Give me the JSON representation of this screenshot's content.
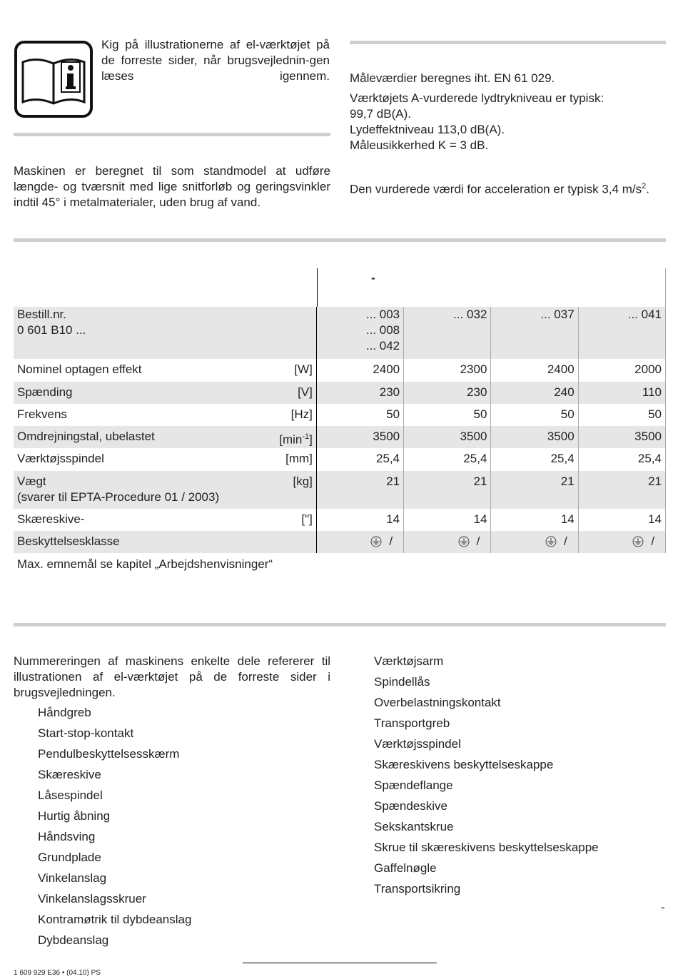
{
  "intro": {
    "text": "Kig på illustrationerne af el-værktøjet på de forreste sider, når brugsvejlednin-gen læses igennem.",
    "icon": "book-info-icon"
  },
  "intended_use": "Maskinen er beregnet til som standmodel at udføre længde- og tværsnit med lige snitforløb og geringsvinkler indtil 45° i metalmaterialer, uden brug af vand.",
  "noise": {
    "line1": "Måleværdier beregnes iht. EN 61 029.",
    "line2": "Værktøjets A-vurderede lydtrykniveau er typisk:",
    "line3": "99,7 dB(A).",
    "line4": "Lydeffektniveau 113,0 dB(A).",
    "line5": "Måleusikkerhed K = 3 dB."
  },
  "vibration": {
    "text": "Den vurderede værdi for acceleration er typisk 3,4 m/s",
    "sup": "2",
    "end": "."
  },
  "table": {
    "header_dash": "-",
    "order_label": "Bestill.nr.",
    "order_prefix": "0 601 B10 ...",
    "order_numbers": [
      [
        "... 003",
        "... 008",
        "... 042"
      ],
      [
        "... 032"
      ],
      [
        "... 037"
      ],
      [
        "... 041"
      ]
    ],
    "rows": [
      {
        "label": "Nominel optagen effekt",
        "unit": "[W]",
        "values": [
          "2400",
          "2300",
          "2400",
          "2000"
        ]
      },
      {
        "label": "Spænding",
        "unit": "[V]",
        "values": [
          "230",
          "230",
          "240",
          "110"
        ]
      },
      {
        "label": "Frekvens",
        "unit": "[Hz]",
        "values": [
          "50",
          "50",
          "50",
          "50"
        ]
      },
      {
        "label": "Omdrejningstal, ubelastet",
        "unit": "[min",
        "unit_sup": "-1",
        "unit_end": "]",
        "values": [
          "3500",
          "3500",
          "3500",
          "3500"
        ]
      },
      {
        "label": "Værktøjsspindel",
        "unit": "[mm]",
        "values": [
          "25,4",
          "25,4",
          "25,4",
          "25,4"
        ]
      },
      {
        "label": "Vægt",
        "label2": "(svarer til EPTA-Procedure 01 / 2003)",
        "unit": "[kg]",
        "values": [
          "21",
          "21",
          "21",
          "21"
        ]
      },
      {
        "label": "Skæreskive-",
        "unit": "[\"]",
        "values": [
          "14",
          "14",
          "14",
          "14"
        ]
      },
      {
        "label": "Beskyttelsesklasse",
        "unit": "",
        "values": [
          "/",
          "/",
          "/",
          "/"
        ]
      }
    ],
    "protection_icon": "earth-ground-icon",
    "note": "Max. emnemål se kapitel „Arbejdshenvisninger“"
  },
  "parts": {
    "intro": "Nummereringen af maskinens enkelte dele refererer til illustrationen af el-værktøjet på de forreste sider i brugsvejledningen.",
    "left": [
      "Håndgreb",
      "Start-stop-kontakt",
      "Pendulbeskyttelsesskærm",
      "Skæreskive",
      "Låsespindel",
      "Hurtig åbning",
      "Håndsving",
      "Grundplade",
      "Vinkelanslag",
      "Vinkelanslagsskruer",
      "Kontramøtrik til dybdeanslag",
      "Dybdeanslag"
    ],
    "right": [
      "Værktøjsarm",
      "Spindellås",
      "Overbelastningskontakt",
      "Transportgreb",
      "Værktøjsspindel",
      "Skæreskivens beskyttelseskappe",
      "Spændeflange",
      "Spændeskive",
      "Sekskantskrue",
      "Skrue til skæreskivens beskyttelseskappe",
      "Gaffelnøgle",
      "Transportsikring"
    ],
    "trailing_dash": "-"
  },
  "footer": {
    "code": "1 609 929 E36",
    "bullet": "•",
    "date": "(04.10) PS"
  }
}
